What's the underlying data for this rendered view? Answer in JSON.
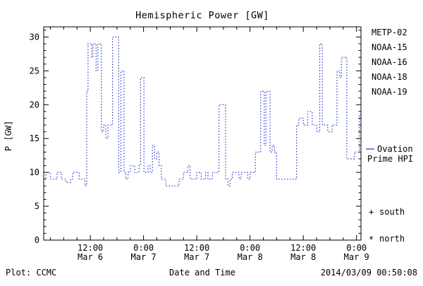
{
  "page": {
    "background": "#ffffff"
  },
  "chart_data": {
    "type": "line",
    "title": "Hemispheric Power [GW]",
    "xlabel": "Date and Time",
    "ylabel": "P [GW]",
    "x_unit": "hours since 2014-03-06 00:00 UT",
    "xlim": [
      1.5,
      73
    ],
    "ylim": [
      0,
      31.5
    ],
    "yticks": [
      0,
      5,
      10,
      15,
      20,
      25,
      30
    ],
    "xticks": [
      {
        "pos": 12,
        "time": "12:00",
        "date": "Mar 6"
      },
      {
        "pos": 24,
        "time": "0:00",
        "date": "Mar 7"
      },
      {
        "pos": 36,
        "time": "12:00",
        "date": "Mar 7"
      },
      {
        "pos": 48,
        "time": "0:00",
        "date": "Mar 8"
      },
      {
        "pos": 60,
        "time": "12:00",
        "date": "Mar 8"
      },
      {
        "pos": 72,
        "time": "0:00",
        "date": "Mar 9"
      }
    ],
    "grid": false,
    "series": [
      {
        "name": "Ovation Prime HPI",
        "color": "#2233cc",
        "line_style": "dotted-step",
        "points": [
          [
            1.5,
            9
          ],
          [
            2,
            10
          ],
          [
            3,
            9
          ],
          [
            4,
            9
          ],
          [
            4.5,
            10
          ],
          [
            5.5,
            9
          ],
          [
            6.5,
            8.5
          ],
          [
            7.5,
            9
          ],
          [
            8,
            10
          ],
          [
            9.5,
            9
          ],
          [
            10.3,
            9
          ],
          [
            10.8,
            8
          ],
          [
            11.2,
            22
          ],
          [
            11.5,
            29
          ],
          [
            12.3,
            27
          ],
          [
            12.6,
            29
          ],
          [
            13.3,
            25
          ],
          [
            13.7,
            29
          ],
          [
            14.5,
            16
          ],
          [
            15,
            17
          ],
          [
            15.5,
            15
          ],
          [
            16,
            17
          ],
          [
            17,
            30
          ],
          [
            18.2,
            30
          ],
          [
            18.4,
            10
          ],
          [
            18.9,
            25
          ],
          [
            19.6,
            10
          ],
          [
            20,
            9
          ],
          [
            20.5,
            10
          ],
          [
            21,
            11
          ],
          [
            22,
            10
          ],
          [
            23,
            11
          ],
          [
            23.3,
            24
          ],
          [
            24.1,
            10
          ],
          [
            25,
            11
          ],
          [
            25.5,
            10
          ],
          [
            26,
            14
          ],
          [
            26.5,
            12
          ],
          [
            27,
            13
          ],
          [
            27.5,
            11
          ],
          [
            28,
            9
          ],
          [
            29,
            8
          ],
          [
            31,
            8
          ],
          [
            32,
            9
          ],
          [
            33,
            10
          ],
          [
            34,
            11
          ],
          [
            34.5,
            9
          ],
          [
            36,
            10
          ],
          [
            37,
            9
          ],
          [
            38,
            10
          ],
          [
            38.5,
            9
          ],
          [
            39.5,
            10
          ],
          [
            41,
            20
          ],
          [
            42.5,
            9
          ],
          [
            43,
            8
          ],
          [
            43.5,
            9
          ],
          [
            44,
            10
          ],
          [
            45,
            10
          ],
          [
            45.5,
            9
          ],
          [
            46,
            10
          ],
          [
            47,
            10
          ],
          [
            47.5,
            9
          ],
          [
            48,
            10
          ],
          [
            49.2,
            13
          ],
          [
            50.4,
            22
          ],
          [
            51.2,
            14
          ],
          [
            51.6,
            22
          ],
          [
            52.5,
            13
          ],
          [
            53,
            14
          ],
          [
            53.5,
            13
          ],
          [
            54,
            9
          ],
          [
            58.5,
            17
          ],
          [
            59,
            18
          ],
          [
            60,
            17
          ],
          [
            61,
            19
          ],
          [
            62,
            17
          ],
          [
            63,
            16
          ],
          [
            63.7,
            29
          ],
          [
            64.3,
            17
          ],
          [
            65.5,
            16
          ],
          [
            66.5,
            17
          ],
          [
            67.6,
            25
          ],
          [
            68.2,
            24
          ],
          [
            68.6,
            27
          ],
          [
            69.8,
            12
          ],
          [
            71,
            12
          ],
          [
            71.5,
            13
          ],
          [
            72.3,
            13
          ],
          [
            72.6,
            18.5
          ],
          [
            73,
            18.5
          ]
        ]
      }
    ]
  },
  "legend": {
    "satellites": [
      {
        "label": "METP-02",
        "color": "#000000"
      },
      {
        "label": "NOAA-15",
        "color": "#2233cc"
      },
      {
        "label": "NOAA-16",
        "color": "#00b4c8"
      },
      {
        "label": "NOAA-18",
        "color": "#46c846"
      },
      {
        "label": "NOAA-19",
        "color": "#ff9628"
      }
    ],
    "hpi": {
      "line1": "Ovation",
      "line2": "Prime HPI",
      "color": "#2233cc"
    },
    "south": {
      "marker": "+",
      "label": "south",
      "color": "#000000"
    },
    "north": {
      "marker": "*",
      "label": "north",
      "color": "#000000"
    }
  },
  "footer": {
    "left": "Plot: CCMC",
    "center": "Date and Time",
    "right": "2014/03/09 00:50:08"
  }
}
